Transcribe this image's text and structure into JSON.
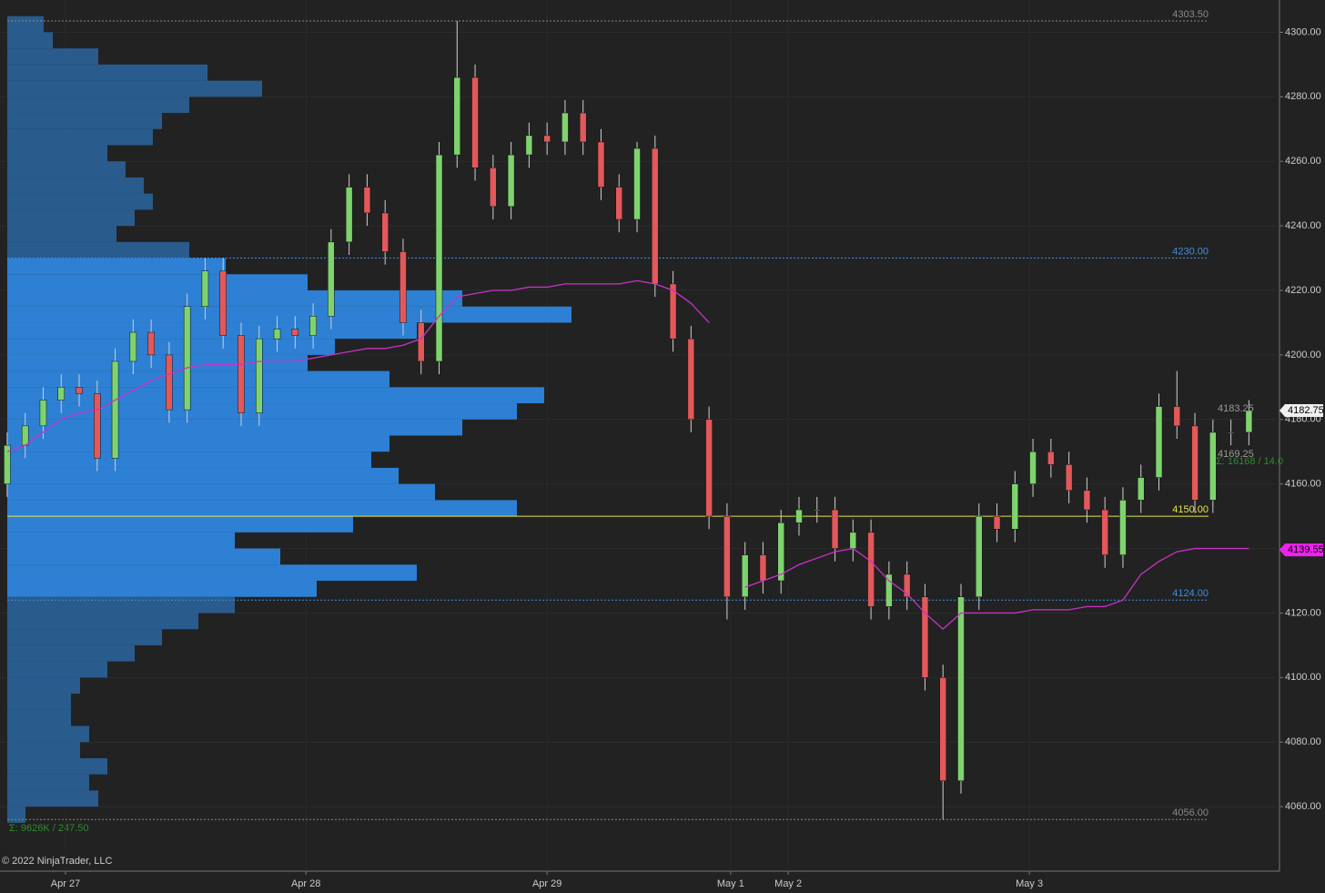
{
  "chart_data": {
    "type": "candlestick",
    "copyright": "© 2022 NinjaTrader, LLC",
    "profile_summary": "Σ: 9626K / 247.50",
    "last_summary": "Σ: 16168 / 14.0",
    "ylim": [
      4040,
      4310
    ],
    "yticks": [
      {
        "value": 4060,
        "label": "4060.00"
      },
      {
        "value": 4080,
        "label": "4080.00"
      },
      {
        "value": 4100,
        "label": "4100.00"
      },
      {
        "value": 4120,
        "label": "4120.00"
      },
      {
        "value": 4140,
        "label": "4140.00"
      },
      {
        "value": 4160,
        "label": "4160.00"
      },
      {
        "value": 4180,
        "label": "4180.00"
      },
      {
        "value": 4200,
        "label": "4200.00"
      },
      {
        "value": 4220,
        "label": "4220.00"
      },
      {
        "value": 4240,
        "label": "4240.00"
      },
      {
        "value": 4260,
        "label": "4260.00"
      },
      {
        "value": 4280,
        "label": "4280.00"
      },
      {
        "value": 4300,
        "label": "4300.00"
      }
    ],
    "xlim": [
      -0.4,
      70.7
    ],
    "xticks": [
      {
        "value": 3.24,
        "label": "Apr 27"
      },
      {
        "value": 16.6,
        "label": "Apr 28"
      },
      {
        "value": 30,
        "label": "Apr 29"
      },
      {
        "value": 40.2,
        "label": "May 1"
      },
      {
        "value": 43.4,
        "label": "May 2"
      },
      {
        "value": 56.8,
        "label": "May 3"
      }
    ],
    "grid": true,
    "up_color": "#7fd36e",
    "down_color": "#e2585b",
    "open": [
      4160,
      4172,
      4178,
      4186,
      4190,
      4188,
      4168,
      4198,
      4207,
      4200,
      4183,
      4215,
      4226,
      4206,
      4182,
      4205,
      4208,
      4206,
      4212,
      4235,
      4252,
      4244,
      4232,
      4210,
      4198,
      4262,
      4286,
      4258,
      4246,
      4262,
      4268,
      4266,
      4275,
      4266,
      4252,
      4242,
      4264,
      4222,
      4205,
      4180,
      4150,
      4125,
      4138,
      4130,
      4148,
      4152,
      4152,
      4140,
      4145,
      4122,
      4132,
      4125,
      4100,
      4068,
      4125,
      4150,
      4146,
      4160,
      4170,
      4166,
      4158,
      4152,
      4138,
      4155,
      4162,
      4184,
      4178,
      4155,
      4176,
      4176
    ],
    "high": [
      4176,
      4182,
      4190,
      4194,
      4194,
      4192,
      4202,
      4211,
      4211,
      4204,
      4219,
      4230,
      4230,
      4210,
      4209,
      4212,
      4212,
      4216,
      4239,
      4256,
      4256,
      4248,
      4236,
      4214,
      4266,
      4303.5,
      4290,
      4262,
      4266,
      4272,
      4272,
      4279,
      4279,
      4270,
      4256,
      4266,
      4268,
      4226,
      4209,
      4184,
      4154,
      4142,
      4142,
      4152,
      4156,
      4156,
      4156,
      4149,
      4149,
      4136,
      4136,
      4129,
      4104,
      4129,
      4154,
      4154,
      4164,
      4174,
      4174,
      4170,
      4162,
      4156,
      4159,
      4166,
      4188,
      4195,
      4182,
      4180,
      4180,
      4186
    ],
    "low": [
      4156,
      4168,
      4174,
      4182,
      4184,
      4164,
      4164,
      4194,
      4196,
      4179,
      4179,
      4211,
      4202,
      4178,
      4178,
      4201,
      4202,
      4202,
      4208,
      4231,
      4240,
      4228,
      4206,
      4194,
      4194,
      4258,
      4254,
      4242,
      4242,
      4258,
      4262,
      4262,
      4262,
      4248,
      4238,
      4238,
      4218,
      4201,
      4176,
      4146,
      4118,
      4121,
      4126,
      4126,
      4144,
      4148,
      4136,
      4136,
      4118,
      4118,
      4121,
      4096,
      4056,
      4064,
      4121,
      4142,
      4142,
      4156,
      4162,
      4154,
      4148,
      4134,
      4134,
      4151,
      4158,
      4174,
      4151,
      4151,
      4172,
      4172
    ],
    "close": [
      4172,
      4178,
      4186,
      4190,
      4188,
      4168,
      4198,
      4207,
      4200,
      4183,
      4215,
      4226,
      4206,
      4182,
      4205,
      4208,
      4206,
      4212,
      4235,
      4252,
      4244,
      4232,
      4210,
      4198,
      4262,
      4286,
      4258,
      4246,
      4262,
      4268,
      4266,
      4275,
      4266,
      4252,
      4242,
      4264,
      4222,
      4205,
      4180,
      4150,
      4125,
      4138,
      4130,
      4148,
      4152,
      4152,
      4140,
      4145,
      4122,
      4132,
      4125,
      4100,
      4068,
      4125,
      4150,
      4146,
      4160,
      4170,
      4166,
      4158,
      4152,
      4138,
      4155,
      4162,
      4184,
      4178,
      4155,
      4176,
      4176,
      4182.75
    ],
    "vwap": {
      "color": "#c832c8",
      "values": [
        4170,
        4172,
        4176,
        4180,
        4182,
        4183,
        4186,
        4189,
        4192,
        4194,
        4196,
        4197,
        4197,
        4197,
        4198,
        4198,
        4198,
        4199,
        4200,
        4201,
        4202,
        4202,
        4203,
        4205,
        4212,
        4218,
        4219,
        4220,
        4220,
        4221,
        4221,
        4222,
        4222,
        4222,
        4222,
        4223,
        4222,
        4220,
        4216,
        4210,
        null,
        4128,
        4130,
        4132,
        4135,
        4137,
        4139,
        4140,
        4136,
        4130,
        4126,
        4120,
        4115,
        4120,
        4120,
        4120,
        4120,
        4121,
        4121,
        4121,
        4122,
        4122,
        4124,
        4132,
        4136,
        4139,
        4140,
        4140,
        4140,
        4140
      ]
    },
    "profile": {
      "step": 5,
      "color": "#2a5f93",
      "value_area_color": "#2e86de",
      "prices": [
        4055,
        4060,
        4065,
        4070,
        4075,
        4080,
        4085,
        4090,
        4095,
        4100,
        4105,
        4110,
        4115,
        4120,
        4125,
        4130,
        4135,
        4140,
        4145,
        4150,
        4155,
        4160,
        4165,
        4170,
        4175,
        4180,
        4185,
        4190,
        4195,
        4200,
        4205,
        4210,
        4215,
        4220,
        4225,
        4230,
        4235,
        4240,
        4245,
        4250,
        4255,
        4260,
        4265,
        4270,
        4275,
        4280,
        4285,
        4290,
        4295,
        4300
      ],
      "volumes": [
        20,
        100,
        90,
        110,
        80,
        90,
        70,
        70,
        80,
        110,
        140,
        170,
        210,
        250,
        340,
        450,
        300,
        250,
        380,
        560,
        470,
        430,
        400,
        420,
        500,
        560,
        590,
        420,
        330,
        360,
        450,
        620,
        500,
        330,
        240,
        200,
        120,
        140,
        160,
        150,
        130,
        110,
        160,
        170,
        200,
        280,
        220,
        100,
        50,
        40
      ]
    },
    "levels": [
      {
        "value": 4303.5,
        "label": "4303.50",
        "color": "#888888"
      },
      {
        "value": 4230,
        "label": "4230.00",
        "color": "#3d8fe0"
      },
      {
        "value": 4150,
        "label": "4150.00",
        "color": "#e6e64a"
      },
      {
        "value": 4124,
        "label": "4124.00",
        "color": "#3d8fe0"
      },
      {
        "value": 4056,
        "label": "4056.00",
        "color": "#888888"
      }
    ],
    "bar_labels": [
      {
        "value": 4183.25,
        "label": "4183.25"
      },
      {
        "value": 4169.25,
        "label": "4169.25"
      }
    ],
    "badges": [
      {
        "value": 4182.75,
        "label": "4182.75",
        "color": "#f0f0f0",
        "text_color": "#000000"
      },
      {
        "value": 4139.55,
        "label": "4139.55",
        "color": "#ee22ee",
        "text_color": "#000000"
      }
    ]
  }
}
